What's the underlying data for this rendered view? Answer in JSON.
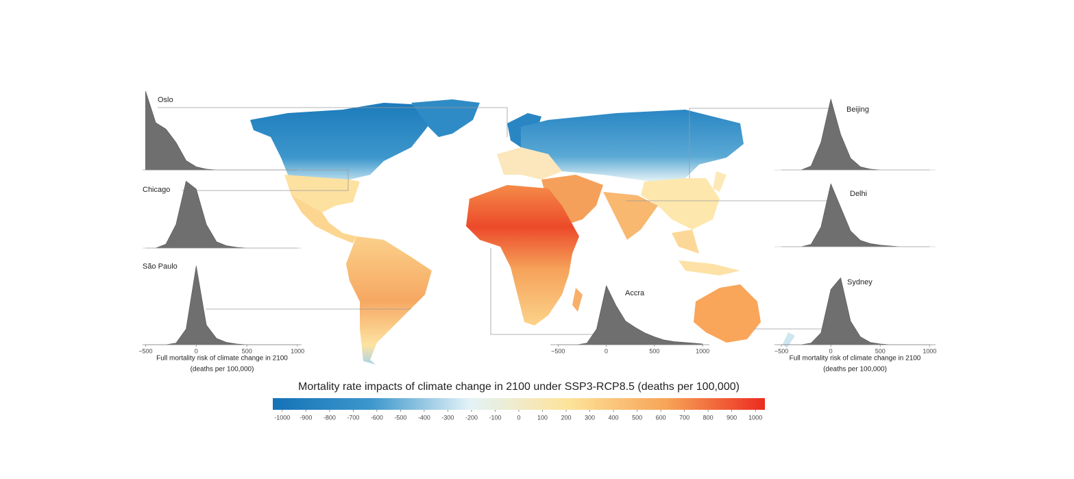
{
  "map": {
    "title": "Mortality rate impacts of climate change in 2100 under SSP3-RCP8.5 (deaths per 100,000)",
    "colorbar": {
      "lim": [
        -1040,
        1040
      ],
      "ticks": [
        -1000,
        -900,
        -800,
        -700,
        -600,
        -500,
        -400,
        -300,
        -200,
        -100,
        0,
        100,
        200,
        300,
        400,
        500,
        600,
        700,
        800,
        900,
        1000
      ],
      "colors": [
        "#1572b6",
        "#3d97cc",
        "#e3f2f7",
        "#fde39a",
        "#f7a457",
        "#ec2c20"
      ]
    },
    "density_ylim": [
      0,
      100
    ],
    "density_x": [
      -500,
      -400,
      -300,
      -200,
      -100,
      0,
      100,
      200,
      300,
      400,
      500,
      600,
      700,
      800,
      900,
      1000
    ],
    "cities": [
      {
        "name": "Oslo",
        "xlim": [
          -530,
          1040
        ],
        "density": [
          100,
          60,
          52,
          35,
          12,
          4,
          1,
          0,
          0,
          0,
          0,
          0,
          0,
          0,
          0,
          0
        ]
      },
      {
        "name": "Chicago",
        "xlim": [
          -530,
          1040
        ],
        "density": [
          0,
          0,
          5,
          30,
          85,
          75,
          30,
          8,
          3,
          1,
          0,
          0,
          0,
          0,
          0,
          0
        ]
      },
      {
        "name": "São Paulo",
        "xlim": [
          -530,
          1040
        ],
        "density": [
          0,
          0,
          0,
          2,
          20,
          100,
          25,
          8,
          3,
          1,
          0,
          0,
          0,
          0,
          0,
          0
        ],
        "xticks": [
          {
            "value": -500,
            "label": "−500"
          },
          0,
          500,
          1000
        ],
        "axis_label": [
          "Full mortality risk of climate change in 2100",
          "(deaths per 100,000)"
        ]
      },
      {
        "name": "Beijing",
        "xlim": [
          -570,
          1060
        ],
        "density": [
          0,
          0,
          0,
          5,
          35,
          90,
          45,
          15,
          4,
          1,
          0,
          0,
          0,
          0,
          0,
          0
        ]
      },
      {
        "name": "Delhi",
        "xlim": [
          -570,
          1060
        ],
        "density": [
          0,
          0,
          0,
          3,
          25,
          80,
          50,
          20,
          8,
          4,
          2,
          1,
          0,
          0,
          0,
          0
        ]
      },
      {
        "name": "Sydney",
        "xlim": [
          -570,
          1060
        ],
        "density": [
          0,
          0,
          0,
          2,
          15,
          70,
          85,
          30,
          10,
          3,
          1,
          0,
          0,
          0,
          0,
          0
        ],
        "xticks": [
          {
            "value": -500,
            "label": "−500"
          },
          0,
          500,
          1000
        ],
        "axis_label": [
          "Full mortality risk of climate change in 2100",
          "(deaths per 100,000)"
        ]
      },
      {
        "name": "Accra",
        "xlim": [
          -580,
          1070
        ],
        "density": [
          0,
          0,
          0,
          2,
          20,
          75,
          50,
          30,
          22,
          15,
          10,
          6,
          4,
          3,
          2,
          1
        ],
        "xticks": [
          {
            "value": -500,
            "label": "−500"
          },
          0,
          500,
          1000
        ]
      }
    ]
  }
}
